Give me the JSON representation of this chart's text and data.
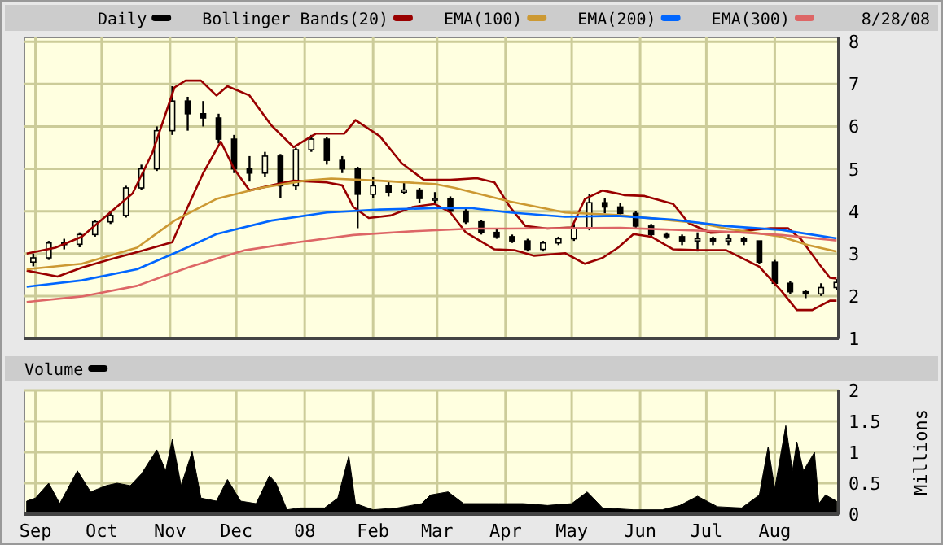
{
  "chart_data": [
    {
      "type": "candlestick",
      "annotations": [
        "8/28/08"
      ],
      "legend": "top",
      "grid": true,
      "tick_labels": "y",
      "xlim": [
        "2007-08-27",
        "2008-08-30"
      ],
      "xticks": [
        {
          "value": "2007-09-01",
          "label": null
        },
        {
          "value": "2007-10-01",
          "label": null
        },
        {
          "value": "2007-11-01",
          "label": null
        },
        {
          "value": "2007-12-01",
          "label": null
        },
        {
          "value": "2008-01-01",
          "label": null
        },
        {
          "value": "2008-02-01",
          "label": null
        },
        {
          "value": "2008-03-01",
          "label": null
        },
        {
          "value": "2008-04-01",
          "label": null
        },
        {
          "value": "2008-05-01",
          "label": null
        },
        {
          "value": "2008-06-01",
          "label": null
        },
        {
          "value": "2008-07-01",
          "label": null
        },
        {
          "value": "2008-08-01",
          "label": null
        }
      ],
      "ylim": [
        1,
        8.1
      ],
      "yticks": [
        1,
        2,
        3,
        4,
        5,
        6,
        7,
        8
      ],
      "x": [
        "2007-08-31",
        "2007-09-07",
        "2007-09-14",
        "2007-09-21",
        "2007-09-28",
        "2007-10-05",
        "2007-10-12",
        "2007-10-19",
        "2007-10-26",
        "2007-11-02",
        "2007-11-09",
        "2007-11-16",
        "2007-11-23",
        "2007-11-30",
        "2007-12-07",
        "2007-12-14",
        "2007-12-21",
        "2007-12-28",
        "2008-01-04",
        "2008-01-11",
        "2008-01-18",
        "2008-01-25",
        "2008-02-01",
        "2008-02-08",
        "2008-02-15",
        "2008-02-22",
        "2008-02-29",
        "2008-03-07",
        "2008-03-14",
        "2008-03-21",
        "2008-03-28",
        "2008-04-04",
        "2008-04-11",
        "2008-04-18",
        "2008-04-25",
        "2008-05-02",
        "2008-05-09",
        "2008-05-16",
        "2008-05-23",
        "2008-05-30",
        "2008-06-06",
        "2008-06-13",
        "2008-06-20",
        "2008-06-27",
        "2008-07-04",
        "2008-07-11",
        "2008-07-18",
        "2008-07-25",
        "2008-08-01",
        "2008-08-08",
        "2008-08-15",
        "2008-08-22",
        "2008-08-29"
      ],
      "series": [
        {
          "name": "Daily",
          "color": "#000000",
          "ohlc": [
            [
              2.8,
              3.0,
              2.7,
              2.9
            ],
            [
              2.9,
              3.3,
              2.85,
              3.25
            ],
            [
              3.25,
              3.35,
              3.1,
              3.22
            ],
            [
              3.22,
              3.5,
              3.15,
              3.45
            ],
            [
              3.45,
              3.8,
              3.4,
              3.75
            ],
            [
              3.75,
              4.0,
              3.7,
              3.9
            ],
            [
              3.9,
              4.6,
              3.85,
              4.55
            ],
            [
              4.55,
              5.1,
              4.5,
              5.0
            ],
            [
              5.0,
              6.0,
              4.95,
              5.9
            ],
            [
              5.9,
              6.95,
              5.8,
              6.6
            ],
            [
              6.6,
              6.7,
              5.9,
              6.3
            ],
            [
              6.3,
              6.6,
              6.0,
              6.2
            ],
            [
              6.2,
              6.3,
              5.6,
              5.7
            ],
            [
              5.7,
              5.8,
              4.9,
              5.0
            ],
            [
              5.0,
              5.3,
              4.7,
              4.9
            ],
            [
              4.9,
              5.4,
              4.8,
              5.3
            ],
            [
              5.3,
              5.35,
              4.3,
              4.6
            ],
            [
              4.6,
              5.5,
              4.5,
              5.45
            ],
            [
              5.45,
              5.8,
              5.4,
              5.7
            ],
            [
              5.7,
              5.75,
              5.1,
              5.2
            ],
            [
              5.2,
              5.3,
              4.9,
              5.0
            ],
            [
              5.0,
              5.05,
              3.6,
              4.4
            ],
            [
              4.4,
              4.8,
              4.3,
              4.6
            ],
            [
              4.6,
              4.7,
              4.35,
              4.45
            ],
            [
              4.45,
              4.7,
              4.4,
              4.5
            ],
            [
              4.5,
              4.55,
              4.2,
              4.3
            ],
            [
              4.3,
              4.45,
              4.2,
              4.3
            ],
            [
              4.3,
              4.35,
              3.95,
              4.0
            ],
            [
              4.0,
              4.05,
              3.7,
              3.75
            ],
            [
              3.75,
              3.8,
              3.45,
              3.5
            ],
            [
              3.5,
              3.6,
              3.35,
              3.4
            ],
            [
              3.4,
              3.45,
              3.25,
              3.3
            ],
            [
              3.3,
              3.35,
              3.05,
              3.1
            ],
            [
              3.1,
              3.3,
              3.05,
              3.25
            ],
            [
              3.25,
              3.4,
              3.2,
              3.35
            ],
            [
              3.35,
              3.7,
              3.3,
              3.6
            ],
            [
              3.6,
              4.4,
              3.55,
              4.2
            ],
            [
              4.2,
              4.3,
              3.95,
              4.1
            ],
            [
              4.1,
              4.2,
              3.9,
              3.95
            ],
            [
              3.95,
              4.0,
              3.6,
              3.65
            ],
            [
              3.65,
              3.7,
              3.4,
              3.45
            ],
            [
              3.45,
              3.5,
              3.35,
              3.4
            ],
            [
              3.4,
              3.45,
              3.2,
              3.3
            ],
            [
              3.3,
              3.5,
              3.05,
              3.35
            ],
            [
              3.35,
              3.4,
              3.2,
              3.3
            ],
            [
              3.3,
              3.45,
              3.2,
              3.35
            ],
            [
              3.35,
              3.4,
              3.2,
              3.3
            ],
            [
              3.3,
              3.3,
              2.75,
              2.8
            ],
            [
              2.8,
              2.85,
              2.25,
              2.3
            ],
            [
              2.3,
              2.35,
              2.05,
              2.1
            ],
            [
              2.1,
              2.15,
              1.95,
              2.05
            ],
            [
              2.05,
              2.3,
              2.0,
              2.2
            ],
            [
              2.2,
              2.4,
              2.15,
              2.32
            ]
          ]
        },
        {
          "name": "Bollinger Bands(20)",
          "type": "line",
          "color": "#990000",
          "x": [
            "2007-08-28",
            "2007-09-10",
            "2007-09-22",
            "2007-10-15",
            "2007-10-24",
            "2007-11-03",
            "2007-11-08",
            "2007-11-15",
            "2007-11-22",
            "2007-11-27",
            "2007-12-07",
            "2007-12-17",
            "2007-12-27",
            "2008-01-06",
            "2008-01-19",
            "2008-01-24",
            "2008-02-04",
            "2008-02-14",
            "2008-02-24",
            "2008-03-07",
            "2008-03-19",
            "2008-03-27",
            "2008-04-03",
            "2008-04-10",
            "2008-04-20",
            "2008-05-01",
            "2008-05-07",
            "2008-05-15",
            "2008-05-25",
            "2008-06-03",
            "2008-06-16",
            "2008-06-23",
            "2008-07-03",
            "2008-07-15",
            "2008-07-30",
            "2008-08-07",
            "2008-08-13",
            "2008-08-21",
            "2008-08-26",
            "2008-08-29"
          ],
          "values": [
            3.0,
            3.14,
            3.4,
            4.42,
            5.38,
            6.92,
            7.08,
            7.08,
            6.73,
            6.95,
            6.73,
            6.02,
            5.51,
            5.83,
            5.83,
            6.15,
            5.77,
            5.13,
            4.74,
            4.74,
            4.78,
            4.68,
            4.1,
            3.65,
            3.59,
            3.62,
            4.29,
            4.49,
            4.38,
            4.36,
            4.17,
            3.72,
            3.49,
            3.52,
            3.6,
            3.6,
            3.33,
            2.76,
            2.43,
            2.41
          ]
        },
        {
          "type": "line",
          "color": "#990000",
          "x": [
            "2007-08-28",
            "2007-09-11",
            "2007-09-22",
            "2007-10-04",
            "2007-10-18",
            "2007-11-02",
            "2007-11-09",
            "2007-11-16",
            "2007-11-24",
            "2007-11-30",
            "2007-12-07",
            "2007-12-17",
            "2007-12-27",
            "2008-01-11",
            "2008-01-18",
            "2008-01-23",
            "2008-01-30",
            "2008-02-09",
            "2008-02-19",
            "2008-02-29",
            "2008-03-07",
            "2008-03-14",
            "2008-03-27",
            "2008-04-05",
            "2008-04-14",
            "2008-04-28",
            "2008-05-07",
            "2008-05-15",
            "2008-05-22",
            "2008-05-29",
            "2008-06-06",
            "2008-06-16",
            "2008-06-28",
            "2008-07-10",
            "2008-07-25",
            "2008-08-04",
            "2008-08-11",
            "2008-08-18",
            "2008-08-26",
            "2008-08-29"
          ],
          "values": [
            2.6,
            2.46,
            2.67,
            2.85,
            3.05,
            3.27,
            4.1,
            4.9,
            5.64,
            5.0,
            4.49,
            4.61,
            4.72,
            4.68,
            4.61,
            4.1,
            3.84,
            3.9,
            4.1,
            4.17,
            3.97,
            3.5,
            3.1,
            3.08,
            2.95,
            3.01,
            2.76,
            2.9,
            3.14,
            3.46,
            3.4,
            3.1,
            3.08,
            3.08,
            2.69,
            2.12,
            1.67,
            1.67,
            1.89,
            1.89
          ]
        },
        {
          "name": "EMA(100)",
          "type": "line",
          "color": "#cc9933",
          "x": [
            "2007-08-28",
            "2007-09-22",
            "2007-10-17",
            "2007-11-03",
            "2007-11-22",
            "2007-12-12",
            "2008-01-01",
            "2008-01-13",
            "2008-02-04",
            "2008-02-29",
            "2008-03-09",
            "2008-04-03",
            "2008-04-28",
            "2008-05-22",
            "2008-06-16",
            "2008-06-28",
            "2008-07-10",
            "2008-08-04",
            "2008-08-16",
            "2008-08-29"
          ],
          "values": [
            2.63,
            2.76,
            3.14,
            3.78,
            4.29,
            4.55,
            4.72,
            4.77,
            4.72,
            4.64,
            4.55,
            4.23,
            3.97,
            3.91,
            3.78,
            3.72,
            3.59,
            3.4,
            3.2,
            3.05
          ]
        },
        {
          "name": "EMA(200)",
          "type": "line",
          "color": "#0066ff",
          "x": [
            "2007-08-28",
            "2007-09-22",
            "2007-10-17",
            "2007-11-03",
            "2007-11-22",
            "2007-12-17",
            "2008-01-11",
            "2008-02-04",
            "2008-02-29",
            "2008-03-17",
            "2008-04-03",
            "2008-04-28",
            "2008-05-22",
            "2008-06-16",
            "2008-07-10",
            "2008-08-04",
            "2008-08-29"
          ],
          "values": [
            2.22,
            2.37,
            2.63,
            3.01,
            3.46,
            3.78,
            3.97,
            4.04,
            4.07,
            4.07,
            3.97,
            3.87,
            3.89,
            3.8,
            3.65,
            3.56,
            3.36
          ]
        },
        {
          "name": "EMA(300)",
          "type": "line",
          "color": "#dd6666",
          "x": [
            "2007-08-28",
            "2007-09-22",
            "2007-10-17",
            "2007-11-10",
            "2007-12-05",
            "2007-12-29",
            "2008-01-23",
            "2008-02-16",
            "2008-03-17",
            "2008-04-03",
            "2008-05-22",
            "2008-07-10",
            "2008-08-04",
            "2008-08-29"
          ],
          "values": [
            1.86,
            1.99,
            2.24,
            2.69,
            3.08,
            3.27,
            3.44,
            3.52,
            3.59,
            3.59,
            3.61,
            3.52,
            3.44,
            3.31
          ]
        }
      ]
    },
    {
      "type": "area",
      "legend": "top",
      "grid": true,
      "ylabel": "Millions",
      "xlim": [
        "2007-08-27",
        "2008-08-30"
      ],
      "xticks": [
        {
          "value": "2007-09-01",
          "label": "Sep"
        },
        {
          "value": "2007-10-01",
          "label": "Oct"
        },
        {
          "value": "2007-11-01",
          "label": "Nov"
        },
        {
          "value": "2007-12-01",
          "label": "Dec"
        },
        {
          "value": "2008-01-01",
          "label": "08"
        },
        {
          "value": "2008-02-01",
          "label": "Feb"
        },
        {
          "value": "2008-03-01",
          "label": "Mar"
        },
        {
          "value": "2008-04-01",
          "label": "Apr"
        },
        {
          "value": "2008-05-01",
          "label": "May"
        },
        {
          "value": "2008-06-01",
          "label": "Jun"
        },
        {
          "value": "2008-07-01",
          "label": "Jul"
        },
        {
          "value": "2008-08-01",
          "label": "Aug"
        }
      ],
      "ylim": [
        0,
        2
      ],
      "yticks": [
        0,
        0.5,
        1,
        1.5,
        2
      ],
      "series": [
        {
          "name": "Volume",
          "color": "#000000",
          "x": [
            "2007-08-28",
            "2007-09-01",
            "2007-09-07",
            "2007-09-12",
            "2007-09-20",
            "2007-09-26",
            "2007-10-03",
            "2007-10-08",
            "2007-10-14",
            "2007-10-19",
            "2007-10-26",
            "2007-10-30",
            "2007-11-02",
            "2007-11-06",
            "2007-11-11",
            "2007-11-15",
            "2007-11-22",
            "2007-11-27",
            "2007-12-03",
            "2007-12-10",
            "2007-12-16",
            "2007-12-19",
            "2007-12-24",
            "2007-12-30",
            "2008-01-10",
            "2008-01-16",
            "2008-01-21",
            "2008-01-24",
            "2008-02-01",
            "2008-02-12",
            "2008-02-23",
            "2008-02-27",
            "2008-03-06",
            "2008-03-13",
            "2008-03-21",
            "2008-03-29",
            "2008-04-09",
            "2008-04-20",
            "2008-05-01",
            "2008-05-08",
            "2008-05-15",
            "2008-05-29",
            "2008-06-11",
            "2008-06-19",
            "2008-06-27",
            "2008-07-06",
            "2008-07-17",
            "2008-07-25",
            "2008-07-29",
            "2008-08-01",
            "2008-08-06",
            "2008-08-09",
            "2008-08-11",
            "2008-08-14",
            "2008-08-19",
            "2008-08-21",
            "2008-08-24",
            "2008-08-29"
          ],
          "values": [
            0.21,
            0.26,
            0.5,
            0.17,
            0.7,
            0.36,
            0.46,
            0.5,
            0.46,
            0.65,
            1.04,
            0.7,
            1.21,
            0.46,
            1.01,
            0.26,
            0.21,
            0.56,
            0.21,
            0.17,
            0.62,
            0.5,
            0.07,
            0.1,
            0.1,
            0.26,
            0.94,
            0.17,
            0.07,
            0.1,
            0.17,
            0.31,
            0.36,
            0.17,
            0.17,
            0.17,
            0.17,
            0.14,
            0.17,
            0.36,
            0.1,
            0.07,
            0.07,
            0.14,
            0.29,
            0.12,
            0.1,
            0.31,
            1.09,
            0.41,
            1.43,
            0.7,
            1.17,
            0.7,
            1.0,
            0.17,
            0.31,
            0.21
          ]
        }
      ]
    }
  ]
}
